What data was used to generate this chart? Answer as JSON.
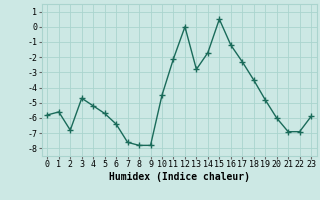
{
  "x": [
    0,
    1,
    2,
    3,
    4,
    5,
    6,
    7,
    8,
    9,
    10,
    11,
    12,
    13,
    14,
    15,
    16,
    17,
    18,
    19,
    20,
    21,
    22,
    23
  ],
  "y": [
    -5.8,
    -5.6,
    -6.8,
    -4.7,
    -5.2,
    -5.7,
    -6.4,
    -7.6,
    -7.8,
    -7.8,
    -4.5,
    -2.1,
    0.0,
    -2.8,
    -1.7,
    0.5,
    -1.2,
    -2.3,
    -3.5,
    -4.8,
    -6.0,
    -6.9,
    -6.9,
    -5.9
  ],
  "line_color": "#1a6b5a",
  "marker": "+",
  "marker_size": 4,
  "bg_color": "#cce8e4",
  "grid_color": "#aad4ce",
  "xlabel": "Humidex (Indice chaleur)",
  "xlim": [
    -0.5,
    23.5
  ],
  "ylim": [
    -8.5,
    1.5
  ],
  "yticks": [
    1,
    0,
    -1,
    -2,
    -3,
    -4,
    -5,
    -6,
    -7,
    -8
  ],
  "xticks": [
    0,
    1,
    2,
    3,
    4,
    5,
    6,
    7,
    8,
    9,
    10,
    11,
    12,
    13,
    14,
    15,
    16,
    17,
    18,
    19,
    20,
    21,
    22,
    23
  ],
  "xlabel_fontsize": 7,
  "tick_fontsize": 6,
  "line_width": 1.0
}
